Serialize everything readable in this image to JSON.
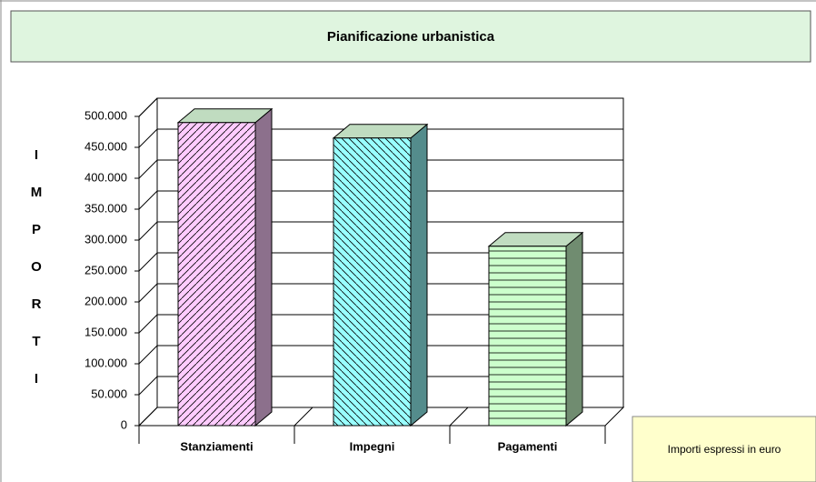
{
  "chart_data": {
    "type": "bar3d",
    "title": "Pianificazione urbanistica",
    "y_label": "IMPORTI",
    "annotation": "Importi espressi in euro",
    "categories": [
      "Stanziamenti",
      "Impegni",
      "Pagamenti"
    ],
    "values": [
      490000,
      465000,
      290000
    ],
    "colors": [
      "#ffccff",
      "#99ffff",
      "#ccffcc"
    ],
    "ylim": [
      0,
      500000
    ],
    "yticks": [
      0,
      {
        "value": 50000,
        "label": "50.000"
      },
      {
        "value": 100000,
        "label": "100.000"
      },
      {
        "value": 150000,
        "label": "150.000"
      },
      {
        "value": 200000,
        "label": "200.000"
      },
      {
        "value": 250000,
        "label": "250.000"
      },
      {
        "value": 300000,
        "label": "300.000"
      },
      {
        "value": 350000,
        "label": "350.000"
      },
      {
        "value": 400000,
        "label": "400.000"
      },
      {
        "value": 450000,
        "label": "450.000"
      },
      {
        "value": 500000,
        "label": "500.000"
      }
    ],
    "grid": true
  }
}
